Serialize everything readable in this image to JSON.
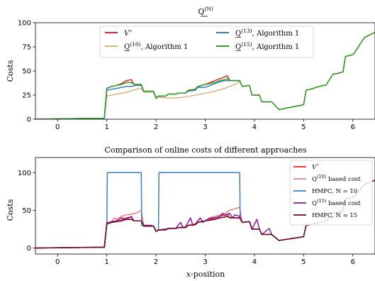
{
  "chart_data": [
    {
      "type": "line",
      "title": "Q(N)",
      "xlabel": "",
      "ylabel": "Costs",
      "xlim": [
        -0.45,
        6.45
      ],
      "ylim": [
        0,
        100
      ],
      "xticks": [
        0,
        1,
        2,
        3,
        4,
        5,
        6
      ],
      "yticks": [
        0,
        25,
        50,
        75,
        100
      ],
      "legend_position": "top-center",
      "series": [
        {
          "name": "V*",
          "color": "#e8232a",
          "x": [
            -0.45,
            0.95,
            1.0,
            1.1,
            1.2,
            1.3,
            1.4,
            1.5,
            1.55,
            1.6,
            1.7,
            1.75,
            1.9,
            1.95,
            2.0,
            2.05,
            2.2,
            2.25,
            2.4,
            2.45,
            2.6,
            2.65,
            2.8,
            2.85,
            3.0,
            3.1,
            3.2,
            3.3,
            3.4,
            3.45,
            3.5,
            3.55,
            3.7,
            3.75,
            3.9,
            3.95,
            4.1,
            4.15,
            4.3,
            4.35,
            4.5,
            5.0,
            5.05,
            5.2,
            5.25,
            5.4,
            5.45,
            5.6,
            5.65,
            5.8,
            5.85,
            6.0,
            6.05,
            6.2,
            6.25,
            6.45
          ],
          "y": [
            0,
            1,
            32,
            34,
            35,
            37,
            40,
            41,
            36,
            36,
            36,
            29,
            29,
            29,
            22,
            24,
            24,
            26,
            26,
            27,
            27,
            30,
            31,
            34,
            36,
            38,
            40,
            42,
            44,
            45,
            40,
            40,
            40,
            34,
            35,
            25,
            25,
            18,
            18,
            18,
            10,
            15,
            30,
            32,
            33,
            35,
            35,
            47,
            47,
            49,
            65,
            67,
            70,
            82,
            85,
            90
          ]
        },
        {
          "name": "Q(10), Algorithm 1",
          "color": "#d9b47f",
          "x": [
            -0.45,
            0.95,
            1.0,
            1.2,
            1.4,
            1.6,
            1.7,
            1.75,
            1.9,
            1.95,
            2.0,
            2.05,
            2.2,
            2.4,
            2.6,
            2.8,
            3.0,
            3.2,
            3.4,
            3.6,
            3.7
          ],
          "y": [
            0,
            1,
            24,
            26,
            28,
            31,
            32,
            28,
            28,
            28,
            21,
            23,
            22,
            22,
            23,
            25,
            27,
            29,
            32,
            36,
            39
          ]
        },
        {
          "name": "Q(13), Algorithm 1",
          "color": "#3a7dc0",
          "x": [
            -0.45,
            0.95,
            1.0,
            1.1,
            1.2,
            1.3,
            1.4,
            1.5,
            1.6,
            1.7,
            1.75,
            1.9,
            1.95,
            2.0,
            2.05,
            2.2,
            2.25,
            2.4,
            2.45,
            2.6,
            2.65,
            2.8,
            2.85,
            3.0,
            3.1,
            3.2,
            3.3,
            3.4,
            3.5,
            3.6,
            3.7,
            3.75
          ],
          "y": [
            0,
            1,
            30,
            31,
            32,
            33,
            34,
            34,
            35,
            35,
            29,
            29,
            29,
            22,
            24,
            24,
            26,
            26,
            27,
            27,
            29,
            30,
            33,
            33,
            35,
            37,
            39,
            40,
            40,
            40,
            40,
            34
          ]
        },
        {
          "name": "Q(15), Algorithm 1",
          "color": "#2ca02c",
          "x": [
            -0.45,
            0.95,
            1.0,
            1.1,
            1.2,
            1.3,
            1.4,
            1.5,
            1.55,
            1.6,
            1.7,
            1.75,
            1.9,
            1.95,
            2.0,
            2.05,
            2.2,
            2.25,
            2.4,
            2.45,
            2.6,
            2.65,
            2.8,
            2.85,
            3.0,
            3.1,
            3.2,
            3.3,
            3.4,
            3.45,
            3.5,
            3.55,
            3.7,
            3.75,
            3.9,
            3.95,
            4.1,
            4.15,
            4.3,
            4.35,
            4.5,
            5.0,
            5.05,
            5.2,
            5.25,
            5.4,
            5.45,
            5.6,
            5.65,
            5.8,
            5.85,
            6.0,
            6.05,
            6.2,
            6.25,
            6.45
          ],
          "y": [
            0,
            1,
            32,
            34,
            35,
            36,
            38,
            38,
            36,
            36,
            36,
            29,
            29,
            29,
            22,
            24,
            24,
            26,
            26,
            27,
            27,
            30,
            31,
            34,
            36,
            37,
            38,
            40,
            41,
            42,
            40,
            40,
            40,
            34,
            35,
            25,
            25,
            18,
            18,
            18,
            10,
            15,
            30,
            32,
            33,
            35,
            35,
            47,
            47,
            49,
            65,
            67,
            70,
            82,
            85,
            90
          ]
        }
      ]
    },
    {
      "type": "line",
      "title": "Comparison of online costs of different approaches",
      "xlabel": "x-position",
      "ylabel": "Costs",
      "xlim": [
        -0.45,
        6.45
      ],
      "ylim": [
        -8,
        120
      ],
      "xticks": [
        0,
        1,
        2,
        3,
        4,
        5,
        6
      ],
      "yticks": [
        0,
        50,
        100
      ],
      "legend_position": "right",
      "series": [
        {
          "name": "V*",
          "color": "#e8232a",
          "x": [
            -0.45,
            0.95,
            1.0,
            1.1,
            1.2,
            1.3,
            1.4,
            1.5,
            1.55,
            1.6,
            1.7,
            1.75,
            1.9,
            1.95,
            2.0,
            2.05,
            2.2,
            2.25,
            2.4,
            2.45,
            2.6,
            2.65,
            2.8,
            2.85,
            3.0,
            3.1,
            3.2,
            3.3,
            3.4,
            3.45,
            3.5,
            3.55,
            3.7,
            3.75,
            3.9,
            3.95,
            4.1,
            4.15,
            4.3,
            4.35,
            4.5,
            5.0,
            5.05,
            5.2,
            5.25,
            5.4,
            5.45,
            5.6,
            5.65,
            5.8,
            5.85,
            6.0,
            6.05,
            6.2,
            6.25,
            6.45
          ],
          "y": [
            0,
            1,
            32,
            34,
            35,
            37,
            40,
            41,
            36,
            36,
            36,
            29,
            29,
            29,
            22,
            24,
            24,
            26,
            26,
            27,
            27,
            30,
            31,
            34,
            36,
            38,
            40,
            42,
            44,
            45,
            40,
            40,
            40,
            34,
            35,
            25,
            25,
            18,
            18,
            18,
            10,
            15,
            30,
            32,
            33,
            35,
            35,
            47,
            47,
            49,
            65,
            67,
            70,
            82,
            85,
            90
          ]
        },
        {
          "name": "Q(10) based cost",
          "color": "#f08080",
          "x": [
            -0.45,
            0.95,
            1.0,
            1.1,
            1.15,
            1.2,
            1.3,
            1.4,
            1.5,
            1.6,
            1.7,
            1.75,
            1.9,
            1.95,
            2.0,
            2.05,
            2.2,
            2.25,
            2.4,
            2.5,
            2.6,
            2.7,
            2.8,
            2.9,
            3.0,
            3.1,
            3.2,
            3.3,
            3.4,
            3.5,
            3.6,
            3.7,
            3.75
          ],
          "y": [
            0,
            1,
            33,
            35,
            40,
            38,
            42,
            44,
            45,
            46,
            50,
            30,
            30,
            29,
            22,
            24,
            25,
            26,
            26,
            28,
            28,
            31,
            32,
            35,
            36,
            40,
            42,
            44,
            46,
            50,
            52,
            54,
            34
          ]
        },
        {
          "name": "HMPC, N = 10",
          "color": "#3a7dc0",
          "x": [
            -0.45,
            0.95,
            1.0,
            1.01,
            1.7,
            1.71,
            1.9,
            1.95,
            2.0,
            2.05,
            2.06,
            3.7,
            3.71,
            3.75,
            3.9,
            3.95,
            4.1,
            4.15,
            4.3,
            4.35,
            4.5,
            5.0,
            5.05,
            5.2,
            5.25,
            5.4,
            5.45,
            5.6,
            5.65,
            5.8,
            5.85,
            6.0,
            6.05,
            6.2,
            6.25,
            6.45
          ],
          "y": [
            0,
            1,
            32,
            100,
            100,
            30,
            30,
            29,
            22,
            24,
            100,
            100,
            40,
            34,
            35,
            25,
            25,
            18,
            18,
            18,
            10,
            15,
            30,
            32,
            33,
            35,
            35,
            47,
            47,
            49,
            65,
            67,
            70,
            82,
            85,
            90
          ]
        },
        {
          "name": "Q(15) based cost",
          "color": "#8b1a9b",
          "x": [
            -0.45,
            0.95,
            1.0,
            1.1,
            1.2,
            1.3,
            1.4,
            1.5,
            1.55,
            1.6,
            1.7,
            1.75,
            1.9,
            1.95,
            2.0,
            2.05,
            2.2,
            2.25,
            2.4,
            2.5,
            2.55,
            2.6,
            2.7,
            2.75,
            2.8,
            2.9,
            2.95,
            3.0,
            3.1,
            3.2,
            3.3,
            3.35,
            3.4,
            3.5,
            3.55,
            3.6,
            3.7,
            3.75,
            3.9,
            3.95,
            4.05,
            4.1,
            4.15,
            4.3,
            4.35,
            4.5
          ],
          "y": [
            0,
            1,
            33,
            35,
            36,
            40,
            38,
            42,
            36,
            36,
            36,
            30,
            30,
            29,
            22,
            24,
            25,
            26,
            26,
            34,
            27,
            28,
            40,
            30,
            32,
            40,
            34,
            36,
            40,
            40,
            42,
            46,
            43,
            46,
            40,
            44,
            42,
            34,
            35,
            25,
            38,
            25,
            18,
            26,
            18,
            10
          ]
        },
        {
          "name": "HMPC, N = 15",
          "color": "#6b0a1e",
          "x": [
            -0.45,
            0.95,
            1.0,
            1.1,
            1.2,
            1.3,
            1.4,
            1.5,
            1.55,
            1.6,
            1.7,
            1.75,
            1.9,
            1.95,
            2.0,
            2.05,
            2.2,
            2.25,
            2.4,
            2.45,
            2.6,
            2.65,
            2.8,
            2.85,
            3.0,
            3.1,
            3.2,
            3.3,
            3.4,
            3.45,
            3.5,
            3.55,
            3.7,
            3.75,
            3.9,
            3.95,
            4.1,
            4.15,
            4.3,
            4.35,
            4.5,
            5.0,
            5.05,
            5.2,
            5.25,
            5.4,
            5.45,
            5.6,
            5.65,
            5.8,
            5.85,
            6.0,
            6.05,
            6.2,
            6.25,
            6.45
          ],
          "y": [
            0,
            1,
            32,
            34,
            35,
            36,
            38,
            38,
            36,
            36,
            36,
            29,
            29,
            29,
            22,
            24,
            24,
            26,
            26,
            27,
            27,
            30,
            31,
            34,
            36,
            37,
            38,
            40,
            41,
            42,
            40,
            40,
            40,
            34,
            35,
            25,
            25,
            18,
            18,
            18,
            10,
            15,
            30,
            32,
            33,
            35,
            35,
            47,
            47,
            49,
            65,
            67,
            70,
            82,
            85,
            90
          ]
        }
      ]
    }
  ],
  "labels": {
    "top_title": "Q",
    "top_title_sup": "(N)",
    "top_ylabel": "Costs",
    "bottom_title": "Comparison of online costs of different approaches",
    "bottom_ylabel": "Costs",
    "bottom_xlabel_var": "x",
    "bottom_xlabel_rest": "-position"
  },
  "legend_top": [
    {
      "base": "V",
      "sup": "⋆",
      "rest": "",
      "color": "#e8232a"
    },
    {
      "base": "Q",
      "sup": "(13)",
      "rest": ", Algorithm 1",
      "color": "#3a7dc0"
    },
    {
      "base": "Q",
      "sup": "(10)",
      "rest": ", Algorithm 1",
      "color": "#d9b47f"
    },
    {
      "base": "Q",
      "sup": "(15)",
      "rest": ", Algorithm 1",
      "color": "#2ca02c"
    }
  ],
  "legend_bottom": [
    {
      "base": "V",
      "sup": "⋆",
      "rest": "",
      "color": "#e8232a"
    },
    {
      "base": "Q",
      "sup": "(10)",
      "rest": " based cost",
      "color": "#f08080"
    },
    {
      "base": "",
      "sup": "",
      "rest": "HMPC, N = 10",
      "color": "#3a7dc0"
    },
    {
      "base": "Q",
      "sup": "(15)",
      "rest": " based cost",
      "color": "#8b1a9b"
    },
    {
      "base": "",
      "sup": "",
      "rest": "HMPC, N = 15",
      "color": "#6b0a1e"
    }
  ]
}
